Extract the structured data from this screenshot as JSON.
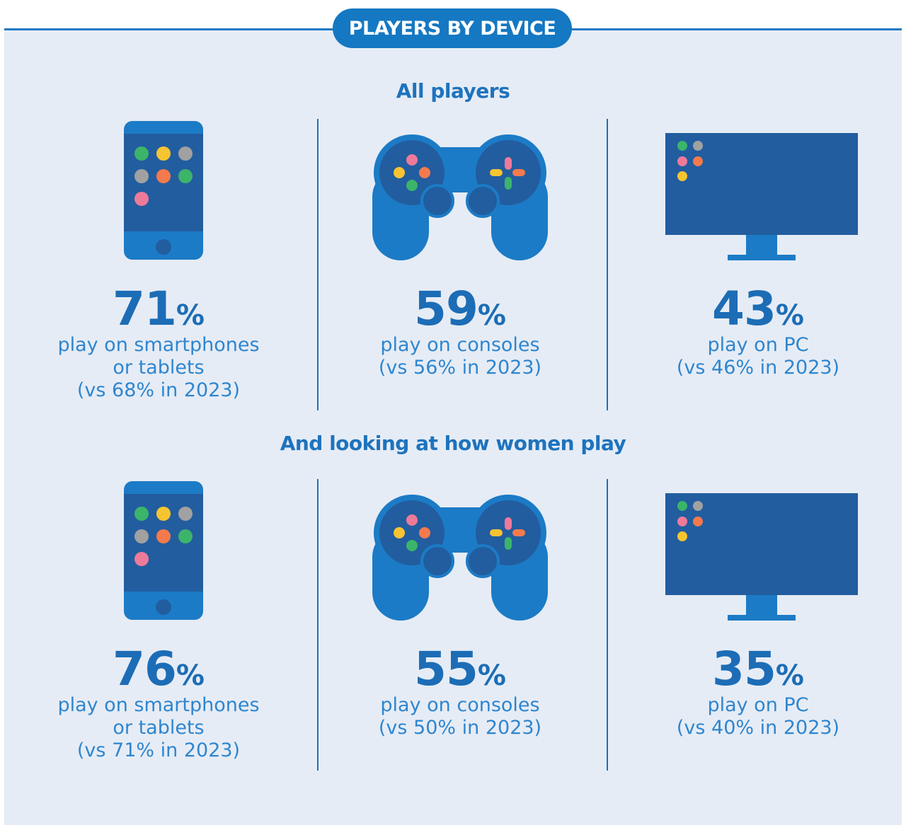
{
  "header": {
    "badge": "PLAYERS BY DEVICE"
  },
  "sections": [
    {
      "title": "All players",
      "stats": [
        {
          "device": "smartphone",
          "value": "71",
          "unit": "%",
          "desc": "play on smartphones\nor tablets\n(vs 68% in 2023)"
        },
        {
          "device": "console",
          "value": "59",
          "unit": "%",
          "desc": "play on consoles\n(vs 56% in 2023)"
        },
        {
          "device": "pc",
          "value": "43",
          "unit": "%",
          "desc": "play on PC\n(vs 46% in 2023)"
        }
      ]
    },
    {
      "title": "And looking at how women play",
      "stats": [
        {
          "device": "smartphone",
          "value": "76",
          "unit": "%",
          "desc": "play on smartphones\nor tablets\n(vs 71% in 2023)"
        },
        {
          "device": "console",
          "value": "55",
          "unit": "%",
          "desc": "play on consoles\n(vs 50% in 2023)"
        },
        {
          "device": "pc",
          "value": "35",
          "unit": "%",
          "desc": "play on PC\n(vs 40% in 2023)"
        }
      ]
    }
  ],
  "chart_data": {
    "type": "table",
    "title": "PLAYERS BY DEVICE",
    "columns": [
      "smartphones or tablets",
      "consoles",
      "PC"
    ],
    "rows": [
      {
        "group": "All players",
        "values_2024": [
          71,
          59,
          43
        ],
        "values_2023": [
          68,
          56,
          46
        ]
      },
      {
        "group": "And looking at how women play",
        "values_2024": [
          76,
          55,
          35
        ],
        "values_2023": [
          71,
          50,
          40
        ]
      }
    ],
    "unit": "%"
  },
  "colors": {
    "accent": "#1578c2",
    "device_dark": "#225d9f",
    "device_light": "#1c7bc6",
    "dot_green": "#3cb46a",
    "dot_yellow": "#f7c431",
    "dot_gray": "#a1a1a1",
    "dot_orange": "#f47a4e",
    "dot_pink": "#ee7a99"
  },
  "icons": [
    "smartphone-icon",
    "gamepad-icon",
    "monitor-icon"
  ]
}
